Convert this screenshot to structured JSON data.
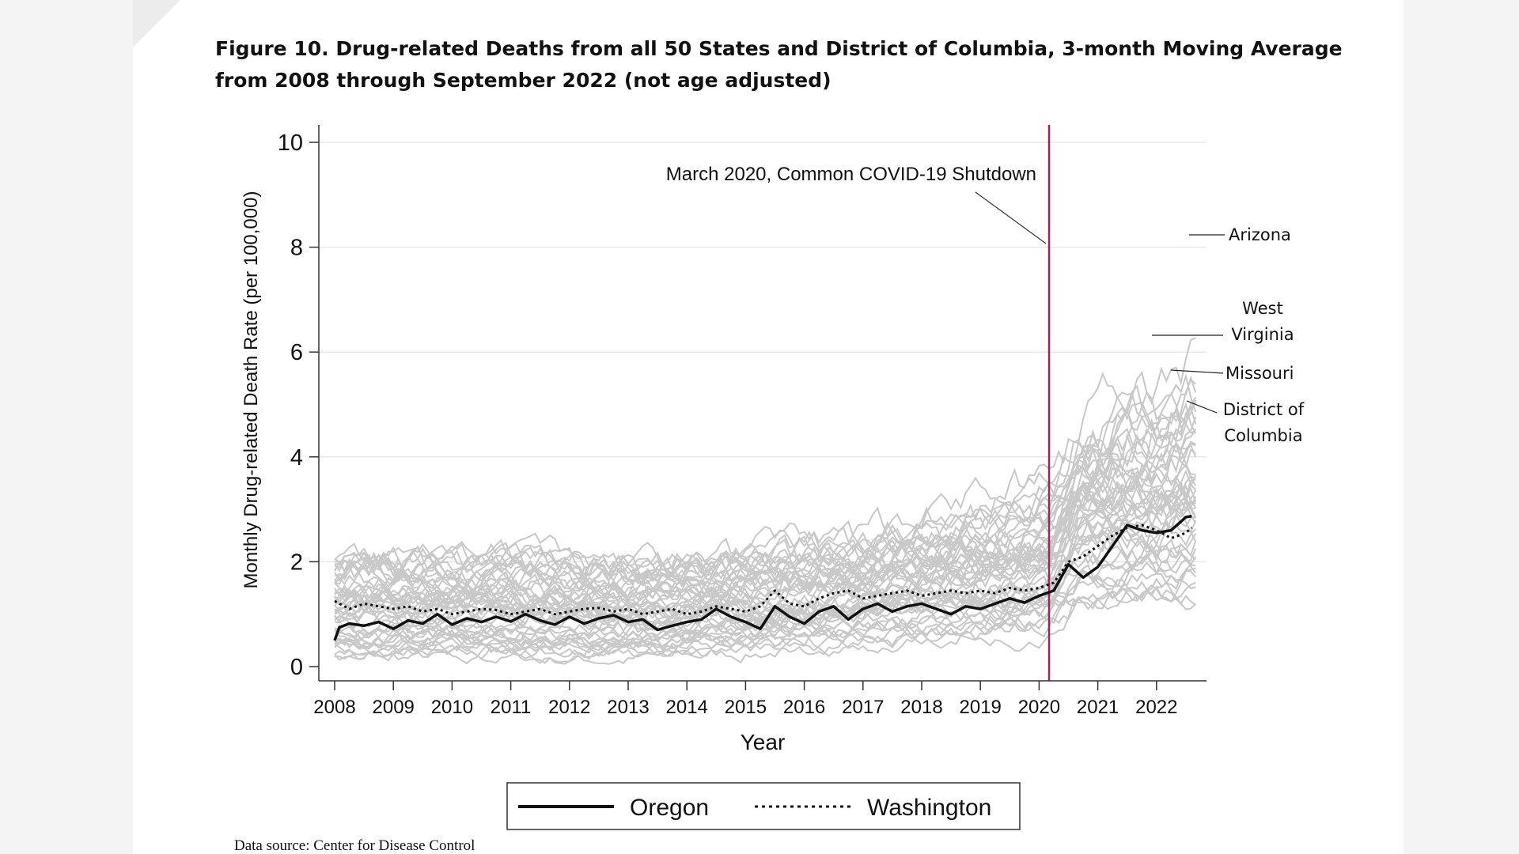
{
  "figure": {
    "title_line1": "Figure 10. Drug-related Deaths from all 50 States and District of Columbia, 3-month Moving Average",
    "title_line2": "from 2008 through September 2022 (not age adjusted)",
    "source": "Data source: Center for Disease Control"
  },
  "colors": {
    "background_states": "#c8c8c8",
    "oregon": "#111111",
    "washington": "#111111",
    "shutdown_line": "#a0245a",
    "grid": "#e8e8e8"
  },
  "chart_data": {
    "type": "line",
    "title": "Figure 10. Drug-related Deaths from all 50 States and District of Columbia, 3-month Moving Average from 2008 through September 2022 (not age adjusted)",
    "xlabel": "Year",
    "ylabel": "Monthly Drug-related Death Rate (per 100,000)",
    "xlim": [
      2008,
      2022.75
    ],
    "ylim": [
      0,
      10
    ],
    "x_ticks": [
      "2008",
      "2009",
      "2010",
      "2011",
      "2012",
      "2013",
      "2014",
      "2015",
      "2016",
      "2017",
      "2018",
      "2019",
      "2020",
      "2021",
      "2022"
    ],
    "y_ticks": [
      "0",
      "2",
      "4",
      "6",
      "8",
      "10"
    ],
    "grid": "horizontal",
    "legend_position": "bottom",
    "series": [
      {
        "name": "Oregon",
        "style": "solid",
        "x": [
          2008.0,
          2008.08,
          2008.25,
          2008.5,
          2008.75,
          2009.0,
          2009.25,
          2009.5,
          2009.75,
          2010.0,
          2010.25,
          2010.5,
          2010.75,
          2011.0,
          2011.25,
          2011.5,
          2011.75,
          2012.0,
          2012.25,
          2012.5,
          2012.75,
          2013.0,
          2013.25,
          2013.5,
          2013.75,
          2014.0,
          2014.25,
          2014.5,
          2014.75,
          2015.0,
          2015.25,
          2015.5,
          2015.75,
          2016.0,
          2016.25,
          2016.5,
          2016.75,
          2017.0,
          2017.25,
          2017.5,
          2017.75,
          2018.0,
          2018.25,
          2018.5,
          2018.75,
          2019.0,
          2019.25,
          2019.5,
          2019.75,
          2020.0,
          2020.25,
          2020.5,
          2020.75,
          2021.0,
          2021.25,
          2021.5,
          2021.75,
          2022.0,
          2022.25,
          2022.5,
          2022.6
        ],
        "y": [
          0.5,
          0.75,
          0.82,
          0.78,
          0.85,
          0.72,
          0.88,
          0.82,
          1.0,
          0.8,
          0.92,
          0.85,
          0.95,
          0.86,
          1.0,
          0.88,
          0.8,
          0.95,
          0.82,
          0.92,
          0.98,
          0.85,
          0.9,
          0.7,
          0.78,
          0.85,
          0.9,
          1.1,
          0.95,
          0.85,
          0.72,
          1.15,
          0.95,
          0.82,
          1.05,
          1.15,
          0.9,
          1.1,
          1.2,
          1.05,
          1.15,
          1.2,
          1.1,
          1.0,
          1.15,
          1.1,
          1.2,
          1.3,
          1.22,
          1.35,
          1.45,
          1.95,
          1.7,
          1.9,
          2.3,
          2.7,
          2.6,
          2.55,
          2.6,
          2.85,
          2.87
        ]
      },
      {
        "name": "Washington",
        "style": "dotted",
        "x": [
          2008.0,
          2008.25,
          2008.5,
          2008.75,
          2009.0,
          2009.25,
          2009.5,
          2009.75,
          2010.0,
          2010.25,
          2010.5,
          2010.75,
          2011.0,
          2011.25,
          2011.5,
          2011.75,
          2012.0,
          2012.25,
          2012.5,
          2012.75,
          2013.0,
          2013.25,
          2013.5,
          2013.75,
          2014.0,
          2014.25,
          2014.5,
          2014.75,
          2015.0,
          2015.25,
          2015.5,
          2015.75,
          2016.0,
          2016.25,
          2016.5,
          2016.75,
          2017.0,
          2017.25,
          2017.5,
          2017.75,
          2018.0,
          2018.25,
          2018.5,
          2018.75,
          2019.0,
          2019.25,
          2019.5,
          2019.75,
          2020.0,
          2020.25,
          2020.5,
          2020.75,
          2021.0,
          2021.25,
          2021.5,
          2021.75,
          2022.0,
          2022.25,
          2022.5,
          2022.6
        ],
        "y": [
          1.25,
          1.1,
          1.2,
          1.15,
          1.1,
          1.15,
          1.05,
          1.1,
          1.0,
          1.05,
          1.1,
          1.08,
          1.0,
          1.05,
          1.1,
          1.0,
          1.05,
          1.1,
          1.12,
          1.05,
          1.1,
          1.0,
          1.05,
          1.1,
          1.0,
          1.05,
          1.15,
          1.1,
          1.05,
          1.15,
          1.45,
          1.2,
          1.15,
          1.3,
          1.4,
          1.45,
          1.3,
          1.35,
          1.4,
          1.45,
          1.35,
          1.4,
          1.45,
          1.4,
          1.45,
          1.4,
          1.5,
          1.45,
          1.5,
          1.6,
          2.0,
          2.1,
          2.3,
          2.5,
          2.65,
          2.7,
          2.6,
          2.45,
          2.55,
          2.65
        ]
      }
    ],
    "annotations": [
      {
        "text": "March 2020, Common COVID-19 Shutdown",
        "x": 2020.17,
        "type": "vertical-line"
      },
      {
        "text": "Arizona",
        "target_y": 8.2
      },
      {
        "text_lines": [
          "West",
          "Virginia"
        ],
        "target_y": 6.3
      },
      {
        "text": "Missouri",
        "target_y": 5.65
      },
      {
        "text_lines": [
          "District of",
          "Columbia"
        ],
        "target_y": 5.1
      }
    ]
  },
  "legend": {
    "items": [
      {
        "label": "Oregon",
        "style": "solid"
      },
      {
        "label": "Washington",
        "style": "dotted"
      }
    ]
  }
}
